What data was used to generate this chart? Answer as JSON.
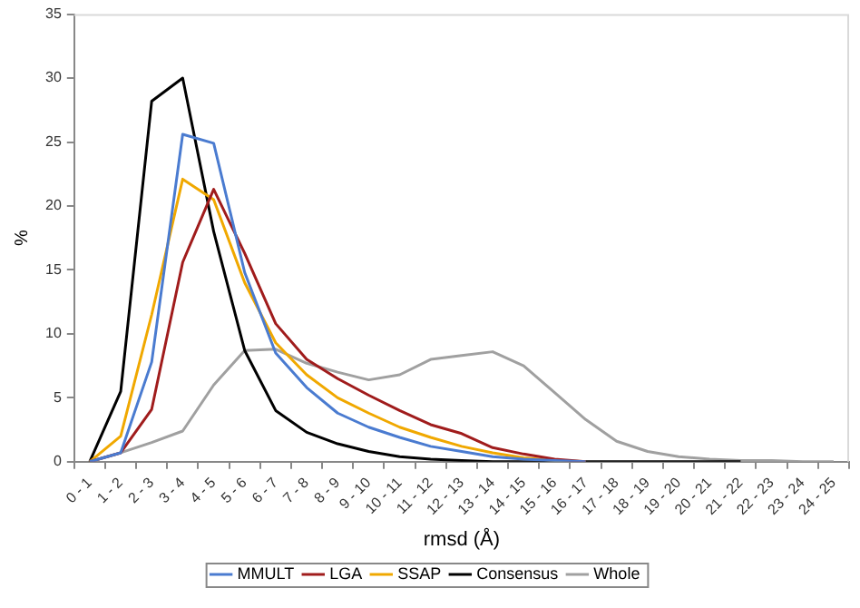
{
  "chart_data": {
    "type": "line",
    "xlabel": "rmsd (Å)",
    "ylabel": "%",
    "categories": [
      "0 - 1",
      "1 - 2",
      "2 - 3",
      "3 - 4",
      "4 - 5",
      "5 - 6",
      "6 - 7",
      "7 - 8",
      "8 - 9",
      "9 - 10",
      "10 - 11",
      "11 - 12",
      "12 - 13",
      "13 - 14",
      "14 - 15",
      "15 - 16",
      "16 - 17",
      "17 - 18",
      "18 - 19",
      "19 - 20",
      "20 - 21",
      "21 - 22",
      "22 - 23",
      "23 - 24",
      "24 - 25"
    ],
    "ylim": [
      0,
      35
    ],
    "yticks": [
      0,
      5,
      10,
      15,
      20,
      25,
      30,
      35
    ],
    "grid": false,
    "legend": "bottom",
    "marker": "none",
    "line_style": "solid",
    "series": [
      {
        "name": "MMULT",
        "color": "#4a7bd0",
        "values": [
          0,
          0.7,
          7.8,
          25.6,
          24.9,
          14.8,
          8.5,
          5.8,
          3.8,
          2.7,
          1.9,
          1.2,
          0.8,
          0.4,
          0.2,
          0.1,
          0,
          null,
          null,
          null,
          null,
          null,
          null,
          null,
          null
        ]
      },
      {
        "name": "LGA",
        "color": "#a01c1c",
        "values": [
          0,
          0.7,
          4.1,
          15.6,
          21.3,
          16.3,
          10.8,
          8.0,
          6.5,
          5.2,
          4.0,
          2.9,
          2.2,
          1.1,
          0.6,
          0.2,
          0,
          null,
          null,
          null,
          null,
          null,
          null,
          null,
          null
        ]
      },
      {
        "name": "SSAP",
        "color": "#f0a800",
        "values": [
          0,
          2.0,
          11.5,
          22.1,
          20.5,
          14.0,
          9.3,
          6.8,
          5.0,
          3.8,
          2.7,
          1.9,
          1.2,
          0.7,
          0.3,
          0.1,
          0,
          null,
          null,
          null,
          null,
          null,
          null,
          null,
          null
        ]
      },
      {
        "name": "Consensus",
        "color": "#000000",
        "values": [
          0,
          5.5,
          28.2,
          30.0,
          18.0,
          8.7,
          4.0,
          2.3,
          1.4,
          0.8,
          0.4,
          0.2,
          0.1,
          0,
          0,
          0,
          0,
          0,
          0,
          0,
          0,
          0,
          null,
          null,
          null
        ]
      },
      {
        "name": "Whole",
        "color": "#a0a0a0",
        "values": [
          0,
          0.7,
          1.5,
          2.4,
          6.0,
          8.7,
          8.8,
          7.7,
          7.0,
          6.4,
          6.8,
          8.0,
          8.3,
          8.6,
          7.5,
          5.4,
          3.3,
          1.6,
          0.8,
          0.4,
          0.2,
          0.1,
          0.1,
          0,
          0
        ]
      }
    ]
  }
}
